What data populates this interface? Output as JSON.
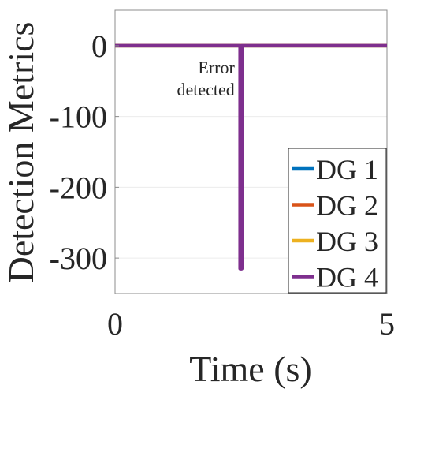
{
  "chart_data": {
    "type": "line",
    "xlabel": "Time (s)",
    "ylabel": "Detection Metrics",
    "xlim": [
      0,
      5
    ],
    "ylim": [
      -350,
      50
    ],
    "xticks": [
      0,
      5
    ],
    "yticks": [
      0,
      -100,
      -200,
      -300
    ],
    "grid": true,
    "legend_position": "bottom-right",
    "series": [
      {
        "name": "DG 1",
        "color": "#0072BD",
        "x": [
          0,
          2.33,
          5
        ],
        "y": [
          0,
          0,
          0
        ]
      },
      {
        "name": "DG 2",
        "color": "#D95319",
        "x": [
          0,
          2.33,
          5
        ],
        "y": [
          0,
          0,
          0
        ]
      },
      {
        "name": "DG 3",
        "color": "#EDB120",
        "x": [
          0,
          2.33,
          5
        ],
        "y": [
          0,
          0,
          0
        ]
      },
      {
        "name": "DG 4",
        "color": "#7E2F8E",
        "x": [
          0,
          2.3,
          2.3,
          2.33,
          2.33,
          5
        ],
        "y": [
          0,
          0,
          -315,
          -315,
          0,
          0
        ]
      }
    ],
    "annotations": [
      {
        "lines": [
          "Error",
          "detected"
        ],
        "x": 2.2,
        "y": -30
      }
    ]
  }
}
